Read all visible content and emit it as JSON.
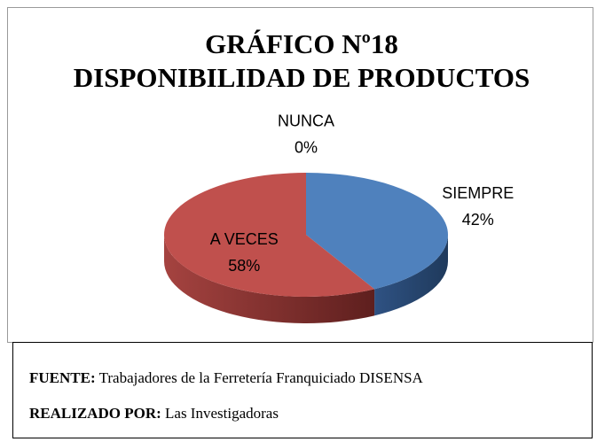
{
  "chart_data": {
    "type": "pie",
    "title": "GRÁFICO Nº18 DISPONIBILIDAD DE PRODUCTOS",
    "categories": [
      "SIEMPRE",
      "A  VECES",
      "NUNCA"
    ],
    "values": [
      42,
      58,
      0
    ],
    "value_labels": [
      "42%",
      "58%",
      "0%"
    ],
    "colors": [
      "#4f81bd",
      "#c0504d",
      "#9bbb59"
    ]
  },
  "footer": {
    "source_label": "FUENTE:",
    "source": "Trabajadores de la Ferretería Franquiciado DISENSA",
    "author_label": "REALIZADO POR:",
    "author": "Las Investigadoras"
  }
}
